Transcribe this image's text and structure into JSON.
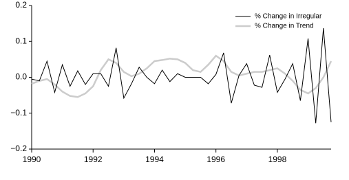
{
  "chart_data": {
    "type": "line",
    "x": [
      1990,
      1990.25,
      1990.5,
      1990.75,
      1991,
      1991.25,
      1991.5,
      1991.75,
      1992,
      1992.25,
      1992.5,
      1992.75,
      1993,
      1993.25,
      1993.5,
      1993.75,
      1994,
      1994.25,
      1994.5,
      1994.75,
      1995,
      1995.25,
      1995.5,
      1995.75,
      1996,
      1996.25,
      1996.5,
      1996.75,
      1997,
      1997.25,
      1997.5,
      1997.75,
      1998,
      1998.25,
      1998.5,
      1998.75,
      1999,
      1999.25,
      1999.5,
      1999.75
    ],
    "series": [
      {
        "name": "% Change in Irregular",
        "color": "#000000",
        "values": [
          -0.005,
          -0.01,
          0.045,
          -0.042,
          0.035,
          -0.025,
          0.018,
          -0.02,
          0.01,
          0.01,
          -0.025,
          0.082,
          -0.058,
          -0.018,
          0.028,
          0.0,
          -0.018,
          0.02,
          -0.012,
          0.01,
          0.0,
          0.0,
          0.0,
          -0.018,
          0.008,
          0.068,
          -0.072,
          0.005,
          0.038,
          -0.022,
          -0.028,
          0.062,
          -0.042,
          -0.005,
          0.038,
          -0.065,
          0.108,
          -0.128,
          0.137,
          -0.125
        ]
      },
      {
        "name": "% Change in Trend",
        "color": "#cccccc",
        "values": [
          -0.018,
          -0.01,
          -0.005,
          -0.02,
          -0.04,
          -0.052,
          -0.055,
          -0.045,
          -0.025,
          0.02,
          0.05,
          0.04,
          0.015,
          0.003,
          0.01,
          0.025,
          0.045,
          0.048,
          0.052,
          0.05,
          0.04,
          0.02,
          0.015,
          0.035,
          0.06,
          0.045,
          0.015,
          0.005,
          0.01,
          0.015,
          0.015,
          0.02,
          0.025,
          0.01,
          -0.01,
          -0.035,
          -0.045,
          -0.03,
          0.0,
          0.045
        ]
      }
    ],
    "xlim": [
      1990,
      1999.75
    ],
    "xticks": [
      1990,
      1992,
      1994,
      1996,
      1998
    ],
    "ylim": [
      -0.2,
      0.2
    ],
    "yticks": [
      {
        "value": -0.2,
        "label": "−0.2"
      },
      {
        "value": -0.1,
        "label": "−0.1"
      },
      {
        "value": 0,
        "label": "0.0"
      },
      0.1,
      0.2
    ],
    "legend": "upper-right"
  }
}
